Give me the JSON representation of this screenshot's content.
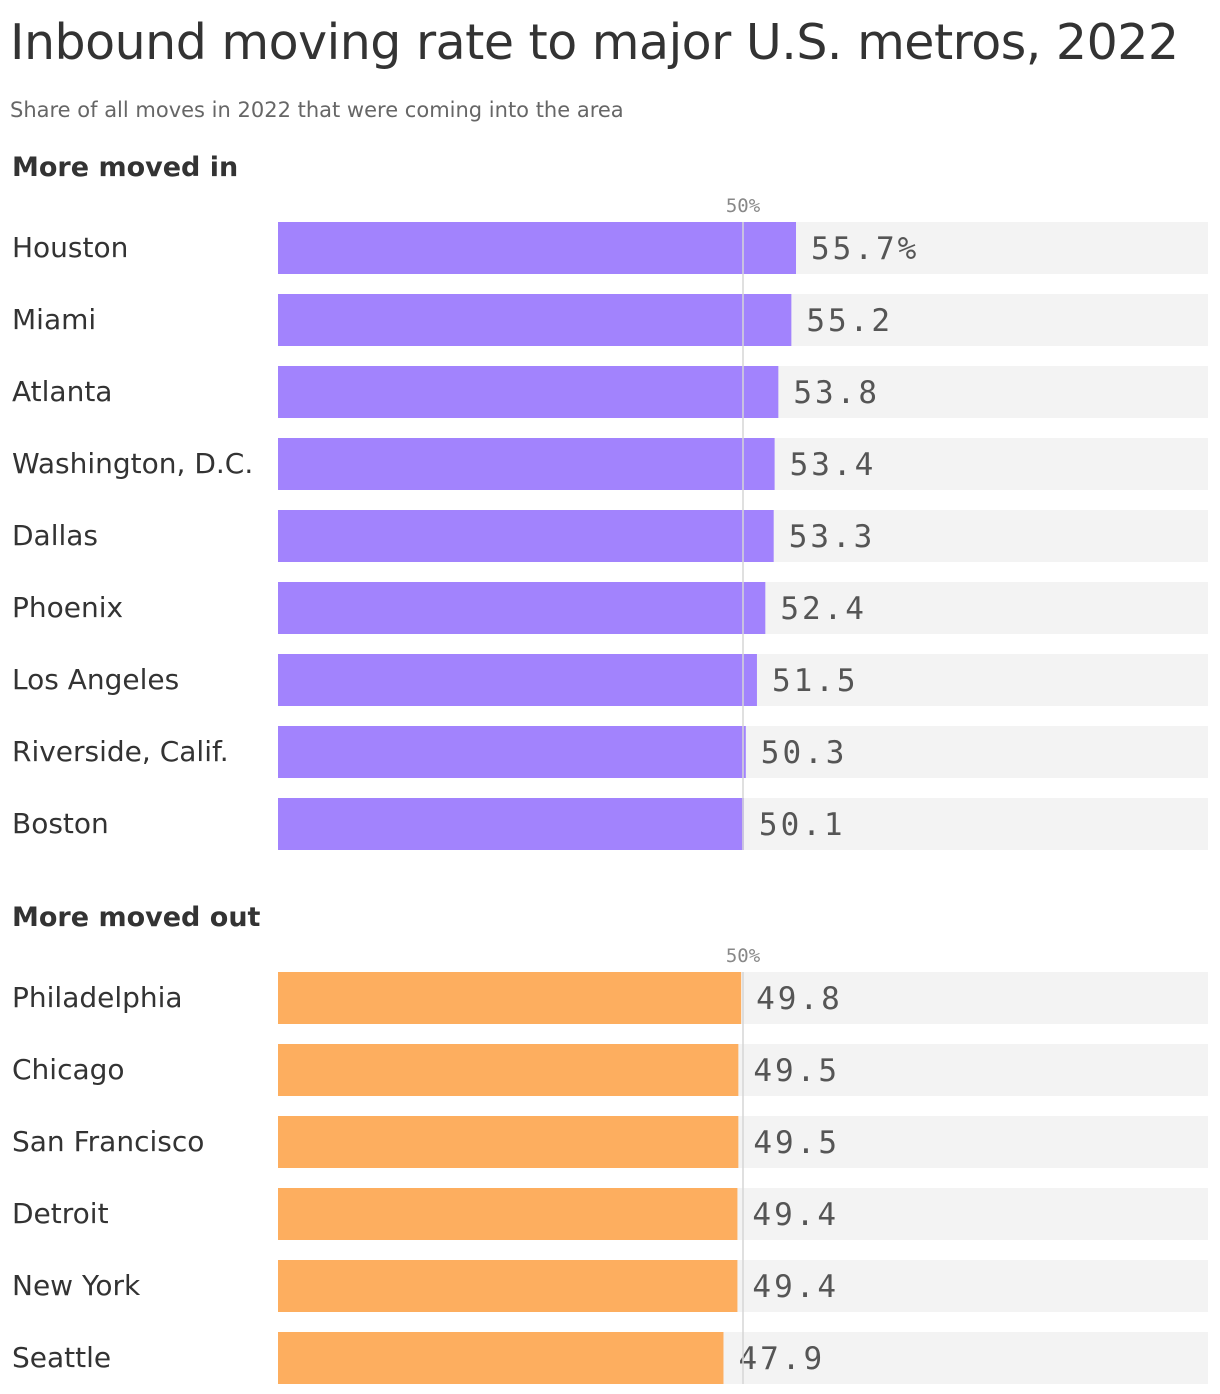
{
  "title": "Inbound moving rate to major U.S. metros, 2022",
  "subtitle": "Share of all moves in 2022 that were coming into the area",
  "colors": {
    "in": "#a283fd",
    "out": "#fdae5f",
    "track": "#f3f3f3",
    "reference": "#d6d6d6"
  },
  "chart_data": [
    {
      "type": "bar",
      "orientation": "horizontal",
      "section_title": "More moved in",
      "reference_label": "50%",
      "reference_value": 50,
      "xlim": [
        0,
        100
      ],
      "categories": [
        "Houston",
        "Miami",
        "Atlanta",
        "Washington, D.C.",
        "Dallas",
        "Phoenix",
        "Los Angeles",
        "Riverside, Calif.",
        "Boston"
      ],
      "values": [
        55.7,
        55.2,
        53.8,
        53.4,
        53.3,
        52.4,
        51.5,
        50.3,
        50.1
      ],
      "value_labels": [
        "55.7%",
        "55.2",
        "53.8",
        "53.4",
        "53.3",
        "52.4",
        "51.5",
        "50.3",
        "50.1"
      ],
      "color": "#a283fd"
    },
    {
      "type": "bar",
      "orientation": "horizontal",
      "section_title": "More moved out",
      "reference_label": "50%",
      "reference_value": 50,
      "xlim": [
        0,
        100
      ],
      "categories": [
        "Philadelphia",
        "Chicago",
        "San Francisco",
        "Detroit",
        "New York",
        "Seattle"
      ],
      "values": [
        49.8,
        49.5,
        49.5,
        49.4,
        49.4,
        47.9
      ],
      "value_labels": [
        "49.8",
        "49.5",
        "49.5",
        "49.4",
        "49.4",
        "47.9"
      ],
      "color": "#fdae5f"
    }
  ]
}
